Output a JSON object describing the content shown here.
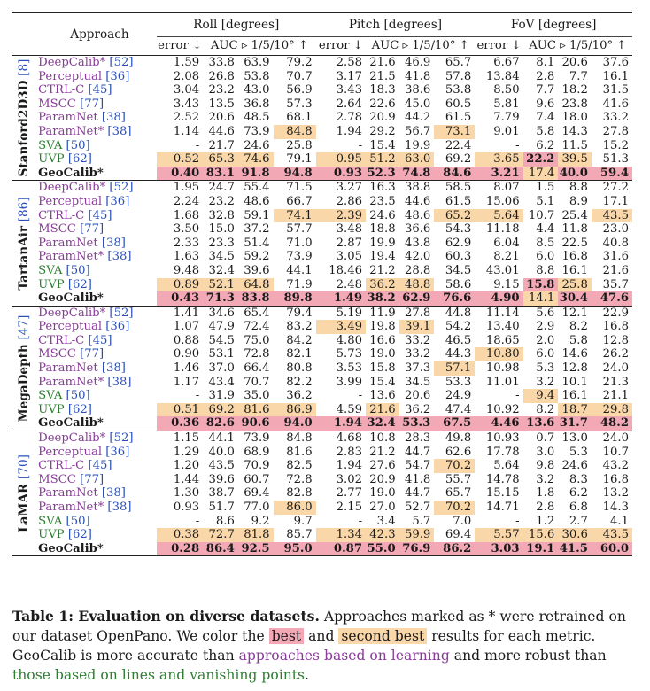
{
  "header": {
    "approach": "Approach",
    "roll": "Roll [degrees]",
    "pitch": "Pitch [degrees]",
    "fov": "FoV [degrees]",
    "error": "error ↓",
    "auc": "AUC ▹ 1/5/10° ↑"
  },
  "datasets": [
    {
      "name": "Stanford2D3D",
      "ref": "[8]",
      "rows": [
        {
          "method": "DeepCalib*",
          "ref": "[52]",
          "type": "learn",
          "vals": [
            "1.59",
            "33.8",
            "63.9",
            "79.2",
            "2.58",
            "21.6",
            "46.9",
            "65.7",
            "6.67",
            "8.1",
            "20.6",
            "37.6"
          ],
          "hl": {}
        },
        {
          "method": "Perceptual",
          "ref": "[36]",
          "type": "learn",
          "vals": [
            "2.08",
            "26.8",
            "53.8",
            "70.7",
            "3.17",
            "21.5",
            "41.8",
            "57.8",
            "13.84",
            "2.8",
            "7.7",
            "16.1"
          ],
          "hl": {}
        },
        {
          "method": "CTRL-C",
          "ref": "[45]",
          "type": "learn",
          "vals": [
            "3.04",
            "23.2",
            "43.0",
            "56.9",
            "3.43",
            "18.3",
            "38.6",
            "53.8",
            "8.50",
            "7.7",
            "18.2",
            "31.5"
          ],
          "hl": {}
        },
        {
          "method": "MSCC",
          "ref": "[77]",
          "type": "learn",
          "vals": [
            "3.43",
            "13.5",
            "36.8",
            "57.3",
            "2.64",
            "22.6",
            "45.0",
            "60.5",
            "5.81",
            "9.6",
            "23.8",
            "41.6"
          ],
          "hl": {}
        },
        {
          "method": "ParamNet",
          "ref": "[38]",
          "type": "learn",
          "vals": [
            "2.52",
            "20.6",
            "48.5",
            "68.1",
            "2.78",
            "20.9",
            "44.2",
            "61.5",
            "7.79",
            "7.4",
            "18.0",
            "33.2"
          ],
          "hl": {}
        },
        {
          "method": "ParamNet*",
          "ref": "[38]",
          "type": "learn",
          "vals": [
            "1.14",
            "44.6",
            "73.9",
            "84.8",
            "1.94",
            "29.2",
            "56.7",
            "73.1",
            "9.01",
            "5.8",
            "14.3",
            "27.8"
          ],
          "hl": {
            "3": "second",
            "7": "second"
          }
        },
        {
          "method": "SVA",
          "ref": "[50]",
          "type": "geo",
          "vals": [
            "-",
            "21.7",
            "24.6",
            "25.8",
            "-",
            "15.4",
            "19.9",
            "22.4",
            "-",
            "6.2",
            "11.5",
            "15.2"
          ],
          "hl": {}
        },
        {
          "method": "UVP",
          "ref": "[62]",
          "type": "geo",
          "vals": [
            "0.52",
            "65.3",
            "74.6",
            "79.1",
            "0.95",
            "51.2",
            "63.0",
            "69.2",
            "3.65",
            "22.2",
            "39.5",
            "51.3"
          ],
          "hl": {
            "0": "second",
            "1": "second",
            "2": "second",
            "4": "second",
            "5": "second",
            "6": "second",
            "8": "second",
            "9": "best",
            "10": "second"
          },
          "bold": [
            9
          ]
        },
        {
          "method": "GeoCalib*",
          "ref": "",
          "type": "ours",
          "vals": [
            "0.40",
            "83.1",
            "91.8",
            "94.8",
            "0.93",
            "52.3",
            "74.8",
            "84.6",
            "3.21",
            "17.4",
            "40.0",
            "59.4"
          ],
          "hl": {
            "0": "best",
            "1": "best",
            "2": "best",
            "3": "best",
            "4": "best",
            "5": "best",
            "6": "best",
            "7": "best",
            "8": "best",
            "9": "second",
            "10": "best",
            "11": "best"
          },
          "bold": [
            0,
            1,
            2,
            3,
            4,
            5,
            6,
            7,
            8,
            10,
            11
          ]
        }
      ]
    },
    {
      "name": "TartanAir",
      "ref": "[86]",
      "rows": [
        {
          "method": "DeepCalib*",
          "ref": "[52]",
          "type": "learn",
          "vals": [
            "1.95",
            "24.7",
            "55.4",
            "71.5",
            "3.27",
            "16.3",
            "38.8",
            "58.5",
            "8.07",
            "1.5",
            "8.8",
            "27.2"
          ],
          "hl": {}
        },
        {
          "method": "Perceptual",
          "ref": "[36]",
          "type": "learn",
          "vals": [
            "2.24",
            "23.2",
            "48.6",
            "66.7",
            "2.86",
            "23.5",
            "44.6",
            "61.5",
            "15.06",
            "5.1",
            "8.9",
            "17.1"
          ],
          "hl": {}
        },
        {
          "method": "CTRL-C",
          "ref": "[45]",
          "type": "learn",
          "vals": [
            "1.68",
            "32.8",
            "59.1",
            "74.1",
            "2.39",
            "24.6",
            "48.6",
            "65.2",
            "5.64",
            "10.7",
            "25.4",
            "43.5"
          ],
          "hl": {
            "3": "second",
            "4": "second",
            "7": "second",
            "8": "second",
            "11": "second"
          }
        },
        {
          "method": "MSCC",
          "ref": "[77]",
          "type": "learn",
          "vals": [
            "3.50",
            "15.0",
            "37.2",
            "57.7",
            "3.48",
            "18.8",
            "36.6",
            "54.3",
            "11.18",
            "4.4",
            "11.8",
            "23.0"
          ],
          "hl": {}
        },
        {
          "method": "ParamNet",
          "ref": "[38]",
          "type": "learn",
          "vals": [
            "2.33",
            "23.3",
            "51.4",
            "71.0",
            "2.87",
            "19.9",
            "43.8",
            "62.9",
            "6.04",
            "8.5",
            "22.5",
            "40.8"
          ],
          "hl": {}
        },
        {
          "method": "ParamNet*",
          "ref": "[38]",
          "type": "learn",
          "vals": [
            "1.63",
            "34.5",
            "59.2",
            "73.9",
            "3.05",
            "19.4",
            "42.0",
            "60.3",
            "8.21",
            "6.0",
            "16.8",
            "31.6"
          ],
          "hl": {}
        },
        {
          "method": "SVA",
          "ref": "[50]",
          "type": "geo",
          "vals": [
            "9.48",
            "32.4",
            "39.6",
            "44.1",
            "18.46",
            "21.2",
            "28.8",
            "34.5",
            "43.01",
            "8.8",
            "16.1",
            "21.6"
          ],
          "hl": {}
        },
        {
          "method": "UVP",
          "ref": "[62]",
          "type": "geo",
          "vals": [
            "0.89",
            "52.1",
            "64.8",
            "71.9",
            "2.48",
            "36.2",
            "48.8",
            "58.6",
            "9.15",
            "15.8",
            "25.8",
            "35.7"
          ],
          "hl": {
            "0": "second",
            "1": "second",
            "2": "second",
            "5": "second",
            "6": "second",
            "9": "best",
            "10": "second"
          },
          "bold": [
            9
          ]
        },
        {
          "method": "GeoCalib*",
          "ref": "",
          "type": "ours",
          "vals": [
            "0.43",
            "71.3",
            "83.8",
            "89.8",
            "1.49",
            "38.2",
            "62.9",
            "76.6",
            "4.90",
            "14.1",
            "30.4",
            "47.6"
          ],
          "hl": {
            "0": "best",
            "1": "best",
            "2": "best",
            "3": "best",
            "4": "best",
            "5": "best",
            "6": "best",
            "7": "best",
            "8": "best",
            "9": "second",
            "10": "best",
            "11": "best"
          },
          "bold": [
            0,
            1,
            2,
            3,
            4,
            5,
            6,
            7,
            8,
            10,
            11
          ]
        }
      ]
    },
    {
      "name": "MegaDepth",
      "ref": "[47]",
      "rows": [
        {
          "method": "DeepCalib*",
          "ref": "[52]",
          "type": "learn",
          "vals": [
            "1.41",
            "34.6",
            "65.4",
            "79.4",
            "5.19",
            "11.9",
            "27.8",
            "44.8",
            "11.14",
            "5.6",
            "12.1",
            "22.9"
          ],
          "hl": {}
        },
        {
          "method": "Perceptual",
          "ref": "[36]",
          "type": "learn",
          "vals": [
            "1.07",
            "47.9",
            "72.4",
            "83.2",
            "3.49",
            "19.8",
            "39.1",
            "54.2",
            "13.40",
            "2.9",
            "8.2",
            "16.8"
          ],
          "hl": {
            "4": "second",
            "6": "second"
          }
        },
        {
          "method": "CTRL-C",
          "ref": "[45]",
          "type": "learn",
          "vals": [
            "0.88",
            "54.5",
            "75.0",
            "84.2",
            "4.80",
            "16.6",
            "33.2",
            "46.5",
            "18.65",
            "2.0",
            "5.8",
            "12.8"
          ],
          "hl": {}
        },
        {
          "method": "MSCC",
          "ref": "[77]",
          "type": "learn",
          "vals": [
            "0.90",
            "53.1",
            "72.8",
            "82.1",
            "5.73",
            "19.0",
            "33.2",
            "44.3",
            "10.80",
            "6.0",
            "14.6",
            "26.2"
          ],
          "hl": {
            "8": "second"
          }
        },
        {
          "method": "ParamNet",
          "ref": "[38]",
          "type": "learn",
          "vals": [
            "1.46",
            "37.0",
            "66.4",
            "80.8",
            "3.53",
            "15.8",
            "37.3",
            "57.1",
            "10.98",
            "5.3",
            "12.8",
            "24.0"
          ],
          "hl": {
            "7": "second"
          }
        },
        {
          "method": "ParamNet*",
          "ref": "[38]",
          "type": "learn",
          "vals": [
            "1.17",
            "43.4",
            "70.7",
            "82.2",
            "3.99",
            "15.4",
            "34.5",
            "53.3",
            "11.01",
            "3.2",
            "10.1",
            "21.3"
          ],
          "hl": {}
        },
        {
          "method": "SVA",
          "ref": "[50]",
          "type": "geo",
          "vals": [
            "-",
            "31.9",
            "35.0",
            "36.2",
            "-",
            "13.6",
            "20.6",
            "24.9",
            "-",
            "9.4",
            "16.1",
            "21.1"
          ],
          "hl": {
            "9": "second"
          }
        },
        {
          "method": "UVP",
          "ref": "[62]",
          "type": "geo",
          "vals": [
            "0.51",
            "69.2",
            "81.6",
            "86.9",
            "4.59",
            "21.6",
            "36.2",
            "47.4",
            "10.92",
            "8.2",
            "18.7",
            "29.8"
          ],
          "hl": {
            "0": "second",
            "1": "second",
            "2": "second",
            "3": "second",
            "5": "second",
            "10": "second",
            "11": "second"
          }
        },
        {
          "method": "GeoCalib*",
          "ref": "",
          "type": "ours",
          "vals": [
            "0.36",
            "82.6",
            "90.6",
            "94.0",
            "1.94",
            "32.4",
            "53.3",
            "67.5",
            "4.46",
            "13.6",
            "31.7",
            "48.2"
          ],
          "hl": {
            "0": "best",
            "1": "best",
            "2": "best",
            "3": "best",
            "4": "best",
            "5": "best",
            "6": "best",
            "7": "best",
            "8": "best",
            "9": "best",
            "10": "best",
            "11": "best"
          },
          "bold": [
            0,
            1,
            2,
            3,
            4,
            5,
            6,
            7,
            8,
            9,
            10,
            11
          ]
        }
      ]
    },
    {
      "name": "LaMAR",
      "ref": "[70]",
      "rows": [
        {
          "method": "DeepCalib*",
          "ref": "[52]",
          "type": "learn",
          "vals": [
            "1.15",
            "44.1",
            "73.9",
            "84.8",
            "4.68",
            "10.8",
            "28.3",
            "49.8",
            "10.93",
            "0.7",
            "13.0",
            "24.0"
          ],
          "hl": {}
        },
        {
          "method": "Perceptual",
          "ref": "[36]",
          "type": "learn",
          "vals": [
            "1.29",
            "40.0",
            "68.9",
            "81.6",
            "2.83",
            "21.2",
            "44.7",
            "62.6",
            "17.78",
            "3.0",
            "5.3",
            "10.7"
          ],
          "hl": {}
        },
        {
          "method": "CTRL-C",
          "ref": "[45]",
          "type": "learn",
          "vals": [
            "1.20",
            "43.5",
            "70.9",
            "82.5",
            "1.94",
            "27.6",
            "54.7",
            "70.2",
            "5.64",
            "9.8",
            "24.6",
            "43.2"
          ],
          "hl": {
            "7": "second"
          }
        },
        {
          "method": "MSCC",
          "ref": "[77]",
          "type": "learn",
          "vals": [
            "1.44",
            "39.6",
            "60.7",
            "72.8",
            "3.02",
            "20.9",
            "41.8",
            "55.7",
            "14.78",
            "3.2",
            "8.3",
            "16.8"
          ],
          "hl": {}
        },
        {
          "method": "ParamNet",
          "ref": "[38]",
          "type": "learn",
          "vals": [
            "1.30",
            "38.7",
            "69.4",
            "82.8",
            "2.77",
            "19.0",
            "44.7",
            "65.7",
            "15.15",
            "1.8",
            "6.2",
            "13.2"
          ],
          "hl": {}
        },
        {
          "method": "ParamNet*",
          "ref": "[38]",
          "type": "learn",
          "vals": [
            "0.93",
            "51.7",
            "77.0",
            "86.0",
            "2.15",
            "27.0",
            "52.7",
            "70.2",
            "14.71",
            "2.8",
            "6.8",
            "14.3"
          ],
          "hl": {
            "3": "second",
            "7": "second"
          }
        },
        {
          "method": "SVA",
          "ref": "[50]",
          "type": "geo",
          "vals": [
            "-",
            "8.6",
            "9.2",
            "9.7",
            "-",
            "3.4",
            "5.7",
            "7.0",
            "-",
            "1.2",
            "2.7",
            "4.1"
          ],
          "hl": {}
        },
        {
          "method": "UVP",
          "ref": "[62]",
          "type": "geo",
          "vals": [
            "0.38",
            "72.7",
            "81.8",
            "85.7",
            "1.34",
            "42.3",
            "59.9",
            "69.4",
            "5.57",
            "15.6",
            "30.6",
            "43.5"
          ],
          "hl": {
            "0": "second",
            "1": "second",
            "2": "second",
            "4": "second",
            "5": "second",
            "6": "second",
            "8": "second",
            "9": "second",
            "10": "second",
            "11": "second"
          }
        },
        {
          "method": "GeoCalib*",
          "ref": "",
          "type": "ours",
          "vals": [
            "0.28",
            "86.4",
            "92.5",
            "95.0",
            "0.87",
            "55.0",
            "76.9",
            "86.2",
            "3.03",
            "19.1",
            "41.5",
            "60.0"
          ],
          "hl": {
            "0": "best",
            "1": "best",
            "2": "best",
            "3": "best",
            "4": "best",
            "5": "best",
            "6": "best",
            "7": "best",
            "8": "best",
            "9": "best",
            "10": "best",
            "11": "best"
          },
          "bold": [
            0,
            1,
            2,
            3,
            4,
            5,
            6,
            7,
            8,
            9,
            10,
            11
          ]
        }
      ]
    }
  ],
  "caption": {
    "title": "Table 1: Evaluation on diverse datasets.",
    "t1": " Approaches marked as * were retrained on our dataset OpenPano. We color the ",
    "best": "best",
    "and": " and ",
    "second": "second best",
    "t2": " results for each metric. GeoCalib is more accurate than ",
    "learn": "approaches based on learning",
    "t3": " and more robust than ",
    "geo": "those based on lines and vanishing points",
    "end": "."
  },
  "colors": {
    "best": "#f3a8b6",
    "second": "#f9d7a8",
    "learning": "#8a3c9a",
    "geometric": "#2e7d32",
    "reference": "#2a4fb8"
  }
}
